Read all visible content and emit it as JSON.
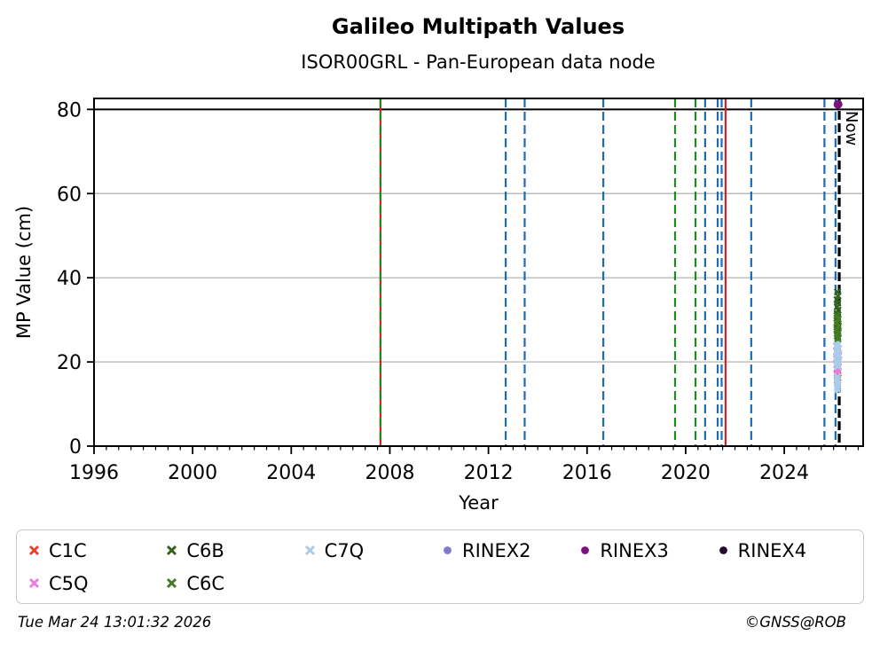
{
  "footer": {
    "timestamp": "Tue Mar 24 13:01:32 2026",
    "copyright": "©GNSS@ROB"
  },
  "chart_data": {
    "type": "scatter",
    "title": "Galileo Multipath Values",
    "subtitle": "ISOR00GRL - Pan-European data node",
    "xlabel": "Year",
    "ylabel": "MP Value (cm)",
    "xlim": [
      1996,
      2027.2
    ],
    "ylim": [
      0,
      82.6
    ],
    "x_major_ticks": [
      1996,
      2000,
      2004,
      2008,
      2012,
      2016,
      2020,
      2024
    ],
    "x_minor_tick_step": 0.5,
    "y_ticks": [
      0,
      20,
      40,
      60,
      80
    ],
    "y_gridlines": [
      20,
      40,
      60
    ],
    "grid_on": true,
    "grid_color": "#bbbbbb",
    "threshold_line": {
      "value": 80,
      "color": "#000000"
    },
    "now_line": {
      "year": 2026.23,
      "label": "Now",
      "color": "#000000"
    },
    "event_lines": [
      {
        "year": 2007.62,
        "color": "#d42222",
        "style": "solid",
        "name": "event-red-2007"
      },
      {
        "year": 2007.62,
        "color": "#1e8b1e",
        "style": "dashed",
        "name": "event-green-2007"
      },
      {
        "year": 2012.7,
        "color": "#1c6bb4",
        "style": "dashed",
        "name": "event-blue-2012"
      },
      {
        "year": 2013.47,
        "color": "#1c6bb4",
        "style": "dashed",
        "name": "event-blue-2013"
      },
      {
        "year": 2016.66,
        "color": "#1c6bb4",
        "style": "dashed",
        "name": "event-blue-2016"
      },
      {
        "year": 2019.57,
        "color": "#1e8b1e",
        "style": "dashed",
        "name": "event-green-2019"
      },
      {
        "year": 2020.4,
        "color": "#1e8b1e",
        "style": "dashed",
        "name": "event-green-2020"
      },
      {
        "year": 2020.79,
        "color": "#1c6bb4",
        "style": "dashed",
        "name": "event-blue-2020"
      },
      {
        "year": 2021.3,
        "color": "#1c6bb4",
        "style": "dashed",
        "name": "event-blue-2021a"
      },
      {
        "year": 2021.46,
        "color": "#1c6bb4",
        "style": "dashed",
        "name": "event-blue-2021b"
      },
      {
        "year": 2021.62,
        "color": "#d42222",
        "style": "solid",
        "name": "event-red-2021"
      },
      {
        "year": 2022.66,
        "color": "#1c6bb4",
        "style": "dashed",
        "name": "event-blue-2022"
      },
      {
        "year": 2025.63,
        "color": "#1c6bb4",
        "style": "dashed",
        "name": "event-blue-2025"
      },
      {
        "year": 2026.08,
        "color": "#1c6bb4",
        "style": "dashed",
        "name": "event-blue-2026"
      }
    ],
    "series": [
      {
        "name": "C1C",
        "marker": "x",
        "color": "#e8402c",
        "points": [
          [
            2026.15,
            18.4
          ],
          [
            2026.18,
            17.9
          ],
          [
            2026.14,
            17.3
          ],
          [
            2026.16,
            16.8
          ],
          [
            2026.18,
            16.2
          ],
          [
            2026.15,
            15.6
          ]
        ]
      },
      {
        "name": "C5Q",
        "marker": "x",
        "color": "#ee7be2",
        "points": [
          [
            2026.12,
            23.8
          ],
          [
            2026.2,
            23.2
          ],
          [
            2026.12,
            22.4
          ],
          [
            2026.21,
            21.6
          ],
          [
            2026.12,
            20.8
          ],
          [
            2026.2,
            20.0
          ],
          [
            2026.13,
            19.3
          ],
          [
            2026.19,
            18.7
          ],
          [
            2026.14,
            18.1
          ],
          [
            2026.17,
            17.6
          ]
        ]
      },
      {
        "name": "C7Q",
        "marker": "x",
        "color": "#a9cce9",
        "points": [
          [
            2026.15,
            24.4
          ],
          [
            2026.17,
            24.0
          ],
          [
            2026.13,
            23.6
          ],
          [
            2026.19,
            23.2
          ],
          [
            2026.16,
            22.8
          ],
          [
            2026.14,
            22.4
          ],
          [
            2026.18,
            22.0
          ],
          [
            2026.13,
            21.6
          ],
          [
            2026.19,
            21.2
          ],
          [
            2026.15,
            20.8
          ],
          [
            2026.17,
            20.4
          ],
          [
            2026.14,
            20.0
          ],
          [
            2026.18,
            19.6
          ],
          [
            2026.15,
            19.2
          ],
          [
            2026.17,
            18.9
          ],
          [
            2026.16,
            16.6
          ],
          [
            2026.14,
            16.1
          ],
          [
            2026.18,
            15.6
          ],
          [
            2026.15,
            15.1
          ],
          [
            2026.17,
            14.5
          ],
          [
            2026.15,
            13.9
          ],
          [
            2026.16,
            13.4
          ]
        ]
      },
      {
        "name": "C6B",
        "marker": "x",
        "color": "#33611c",
        "points": [
          [
            2026.16,
            36.6
          ],
          [
            2026.18,
            35.7
          ],
          [
            2026.14,
            34.8
          ],
          [
            2026.17,
            34.0
          ],
          [
            2026.15,
            33.1
          ],
          [
            2026.18,
            32.3
          ],
          [
            2026.14,
            31.5
          ],
          [
            2026.17,
            30.7
          ],
          [
            2026.15,
            29.9
          ],
          [
            2026.18,
            29.1
          ],
          [
            2026.14,
            28.3
          ],
          [
            2026.17,
            27.5
          ],
          [
            2026.15,
            26.7
          ],
          [
            2026.17,
            26.0
          ]
        ]
      },
      {
        "name": "C6C",
        "marker": "x",
        "color": "#467a24",
        "points": [
          [
            2026.13,
            31.0
          ],
          [
            2026.19,
            30.2
          ],
          [
            2026.13,
            29.3
          ],
          [
            2026.2,
            28.5
          ],
          [
            2026.13,
            27.7
          ],
          [
            2026.19,
            26.9
          ],
          [
            2026.15,
            26.2
          ],
          [
            2026.18,
            25.5
          ]
        ]
      },
      {
        "name": "RINEX2",
        "marker": "circle",
        "color": "#8278c8",
        "points": []
      },
      {
        "name": "RINEX3",
        "marker": "circle",
        "color": "#7c107c",
        "points": [
          [
            2026.18,
            81.2
          ]
        ]
      },
      {
        "name": "RINEX4",
        "marker": "circle",
        "color": "#250b2f",
        "points": []
      }
    ],
    "legend": {
      "position": "bottom",
      "columns": [
        [
          {
            "label": "C1C",
            "marker": "x",
            "color": "#e8402c"
          },
          {
            "label": "C5Q",
            "marker": "x",
            "color": "#ee7be2"
          }
        ],
        [
          {
            "label": "C6B",
            "marker": "x",
            "color": "#33611c"
          },
          {
            "label": "C6C",
            "marker": "x",
            "color": "#467a24"
          }
        ],
        [
          {
            "label": "C7Q",
            "marker": "x",
            "color": "#a9cce9"
          }
        ],
        [
          {
            "label": "RINEX2",
            "marker": "circle",
            "color": "#8278c8"
          }
        ],
        [
          {
            "label": "RINEX3",
            "marker": "circle",
            "color": "#7c107c"
          }
        ],
        [
          {
            "label": "RINEX4",
            "marker": "circle",
            "color": "#250b2f"
          }
        ]
      ]
    }
  }
}
